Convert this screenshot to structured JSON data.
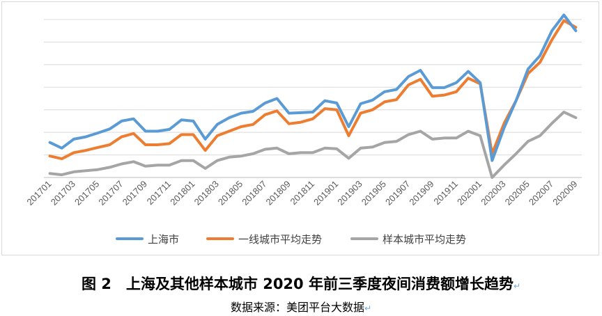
{
  "chart_data": {
    "type": "line",
    "title": "",
    "xlabel": "",
    "ylabel": "",
    "x": [
      "201701",
      "201702",
      "201703",
      "201704",
      "201705",
      "201706",
      "201707",
      "201708",
      "201709",
      "201710",
      "201711",
      "201712",
      "201801",
      "201802",
      "201803",
      "201804",
      "201805",
      "201806",
      "201807",
      "201808",
      "201809",
      "201810",
      "201811",
      "201812",
      "201901",
      "201902",
      "201903",
      "201904",
      "201905",
      "201906",
      "201907",
      "201908",
      "201909",
      "201910",
      "201911",
      "201912",
      "202001",
      "202002",
      "202003",
      "202004",
      "202005",
      "202006",
      "202007",
      "202008",
      "202009"
    ],
    "x_tick_labels": [
      "201701",
      "201703",
      "201705",
      "201707",
      "201709",
      "201711",
      "201801",
      "201803",
      "201805",
      "201807",
      "201809",
      "201811",
      "201901",
      "201903",
      "201905",
      "201907",
      "201909",
      "201911",
      "202001",
      "202003",
      "202005",
      "202007",
      "202009"
    ],
    "ylim": [
      0,
      7
    ],
    "grid": true,
    "legend_position": "bottom",
    "series": [
      {
        "name": "上海市",
        "color": "#5b9bd5",
        "values": [
          1.55,
          1.3,
          1.7,
          1.8,
          1.97,
          2.15,
          2.5,
          2.6,
          2.05,
          2.05,
          2.13,
          2.55,
          2.5,
          1.7,
          2.35,
          2.65,
          2.85,
          2.93,
          3.3,
          3.5,
          2.85,
          2.87,
          2.9,
          3.4,
          3.3,
          2.25,
          3.27,
          3.43,
          3.8,
          3.9,
          4.47,
          4.75,
          3.98,
          3.98,
          4.2,
          4.7,
          4.2,
          0.75,
          2.2,
          3.4,
          4.8,
          5.4,
          6.5,
          7.2,
          6.5
        ]
      },
      {
        "name": "一线城市平均走势",
        "color": "#ed7d31",
        "values": [
          0.95,
          0.83,
          1.1,
          1.2,
          1.33,
          1.45,
          1.8,
          1.95,
          1.45,
          1.45,
          1.5,
          1.9,
          1.9,
          1.2,
          1.85,
          2.05,
          2.25,
          2.35,
          2.78,
          2.95,
          2.38,
          2.45,
          2.6,
          3.05,
          3.0,
          1.85,
          2.85,
          3.0,
          3.35,
          3.45,
          4.1,
          4.35,
          3.6,
          3.65,
          3.8,
          4.4,
          4.15,
          1.05,
          2.4,
          3.4,
          4.6,
          5.1,
          6.1,
          6.95,
          6.65
        ]
      },
      {
        "name": "样本城市平均走势",
        "color": "#a5a5a5",
        "values": [
          0.18,
          0.12,
          0.25,
          0.3,
          0.35,
          0.45,
          0.6,
          0.7,
          0.5,
          0.55,
          0.55,
          0.75,
          0.75,
          0.4,
          0.75,
          0.9,
          0.95,
          1.05,
          1.25,
          1.3,
          1.05,
          1.1,
          1.1,
          1.3,
          1.27,
          0.85,
          1.3,
          1.35,
          1.55,
          1.6,
          1.9,
          2.05,
          1.7,
          1.75,
          1.75,
          2.05,
          1.85,
          0.0,
          0.55,
          1.05,
          1.6,
          1.85,
          2.4,
          2.9,
          2.65
        ]
      }
    ]
  },
  "figure": {
    "title": "图 2　上海及其他样本城市 2020 年前三季度夜间消费额增长趋势",
    "source": "数据来源：美团平台大数据",
    "return_mark": "↵"
  }
}
